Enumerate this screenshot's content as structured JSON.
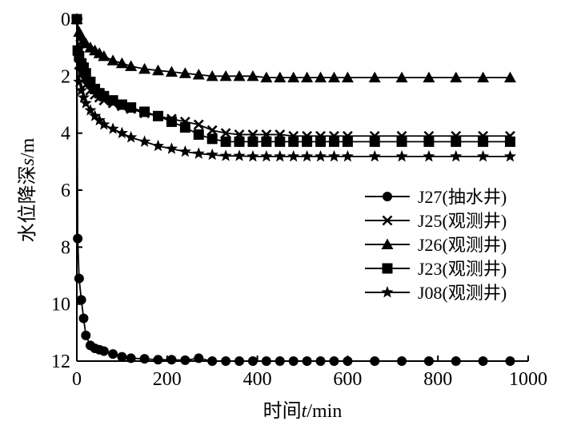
{
  "chart_data": {
    "type": "line",
    "xlabel_prefix": "时间",
    "xlabel_var": "t",
    "xlabel_unit": "/min",
    "ylabel_prefix": "水位降深",
    "ylabel_var": "s",
    "ylabel_unit": "/m",
    "xlim": [
      0,
      1000
    ],
    "ylim": [
      0,
      12
    ],
    "y_inverted": true,
    "x_ticks": [
      0,
      200,
      400,
      600,
      800,
      1000
    ],
    "y_ticks": [
      0,
      2,
      4,
      6,
      8,
      10,
      12
    ],
    "grid": false,
    "legend_position": "right-middle",
    "series": [
      {
        "name": "J27(抽水井)",
        "marker": "circle",
        "x": [
          0,
          2,
          5,
          10,
          15,
          20,
          30,
          40,
          50,
          60,
          80,
          100,
          120,
          150,
          180,
          210,
          240,
          270,
          300,
          330,
          360,
          390,
          420,
          450,
          480,
          510,
          540,
          570,
          600,
          660,
          720,
          780,
          840,
          900,
          960
        ],
        "y": [
          0,
          7.7,
          9.1,
          9.85,
          10.5,
          11.1,
          11.45,
          11.55,
          11.6,
          11.65,
          11.75,
          11.85,
          11.9,
          11.92,
          11.95,
          11.95,
          11.97,
          11.9,
          12.0,
          12.0,
          12.0,
          12.0,
          12.0,
          12.0,
          12.0,
          12.0,
          12.0,
          12.0,
          12.0,
          12.0,
          12.0,
          12.0,
          12.0,
          12.0,
          12.0
        ]
      },
      {
        "name": "J25(观测井)",
        "marker": "x",
        "x": [
          0,
          5,
          10,
          15,
          20,
          30,
          40,
          50,
          60,
          80,
          100,
          120,
          150,
          180,
          210,
          240,
          270,
          300,
          330,
          360,
          390,
          420,
          450,
          480,
          510,
          540,
          570,
          600,
          660,
          720,
          780,
          840,
          900,
          960
        ],
        "y": [
          0,
          1.6,
          1.9,
          2.1,
          2.3,
          2.5,
          2.65,
          2.75,
          2.85,
          2.95,
          3.05,
          3.15,
          3.3,
          3.4,
          3.5,
          3.6,
          3.7,
          3.9,
          4.0,
          4.05,
          4.05,
          4.05,
          4.05,
          4.1,
          4.1,
          4.1,
          4.1,
          4.1,
          4.1,
          4.1,
          4.1,
          4.1,
          4.1,
          4.1
        ]
      },
      {
        "name": "J26(观测井)",
        "marker": "triangle",
        "x": [
          0,
          5,
          10,
          15,
          20,
          30,
          40,
          50,
          60,
          80,
          100,
          120,
          150,
          180,
          210,
          240,
          270,
          300,
          330,
          360,
          390,
          420,
          450,
          480,
          510,
          540,
          570,
          600,
          660,
          720,
          780,
          840,
          900,
          960
        ],
        "y": [
          0,
          0.45,
          0.6,
          0.75,
          0.85,
          1.0,
          1.1,
          1.2,
          1.3,
          1.45,
          1.55,
          1.65,
          1.75,
          1.8,
          1.85,
          1.9,
          1.95,
          2.0,
          2.0,
          2.0,
          2.0,
          2.05,
          2.05,
          2.05,
          2.05,
          2.05,
          2.05,
          2.05,
          2.05,
          2.05,
          2.05,
          2.05,
          2.05,
          2.05
        ]
      },
      {
        "name": "J23(观测井)",
        "marker": "square",
        "x": [
          0,
          2,
          5,
          10,
          15,
          20,
          30,
          40,
          50,
          60,
          80,
          100,
          120,
          150,
          180,
          210,
          240,
          270,
          300,
          330,
          360,
          390,
          420,
          450,
          480,
          510,
          540,
          570,
          600,
          660,
          720,
          780,
          840,
          900,
          960
        ],
        "y": [
          0,
          1.1,
          1.3,
          1.55,
          1.7,
          1.9,
          2.2,
          2.45,
          2.6,
          2.7,
          2.85,
          3.0,
          3.1,
          3.25,
          3.4,
          3.6,
          3.8,
          4.05,
          4.2,
          4.3,
          4.3,
          4.3,
          4.3,
          4.3,
          4.3,
          4.3,
          4.3,
          4.3,
          4.3,
          4.3,
          4.3,
          4.3,
          4.3,
          4.3,
          4.3
        ]
      },
      {
        "name": "J08(观测井)",
        "marker": "star",
        "x": [
          0,
          5,
          10,
          15,
          20,
          30,
          40,
          50,
          60,
          80,
          100,
          120,
          150,
          180,
          210,
          240,
          270,
          300,
          330,
          360,
          390,
          420,
          450,
          480,
          510,
          540,
          570,
          600,
          660,
          720,
          780,
          840,
          900,
          960
        ],
        "y": [
          0,
          2.2,
          2.5,
          2.75,
          2.95,
          3.2,
          3.4,
          3.55,
          3.7,
          3.85,
          4.0,
          4.15,
          4.3,
          4.45,
          4.55,
          4.65,
          4.72,
          4.76,
          4.8,
          4.8,
          4.82,
          4.82,
          4.82,
          4.82,
          4.82,
          4.82,
          4.82,
          4.82,
          4.82,
          4.82,
          4.82,
          4.82,
          4.82,
          4.82
        ]
      }
    ]
  }
}
